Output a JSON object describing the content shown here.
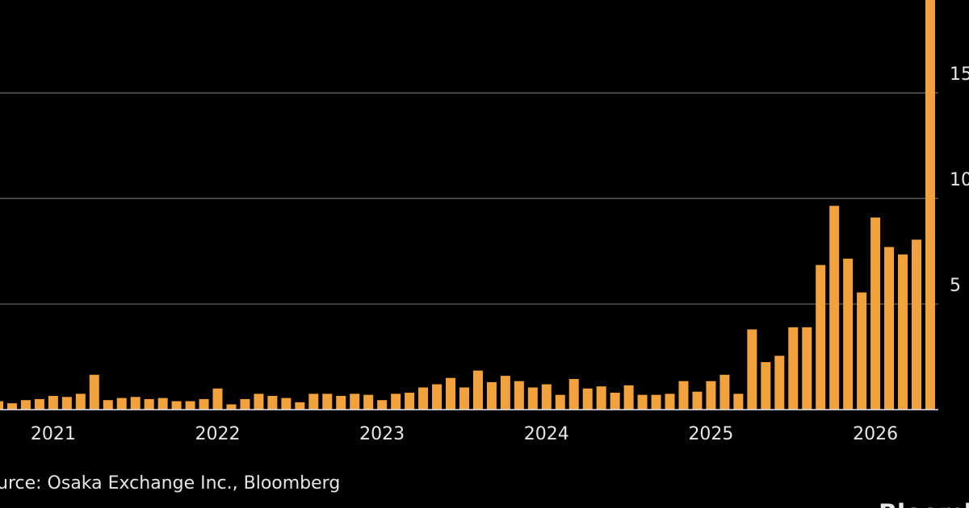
{
  "chart_data": {
    "type": "bar",
    "categories": [
      null,
      null,
      null,
      null,
      "2021",
      null,
      null,
      null,
      null,
      null,
      null,
      null,
      null,
      null,
      null,
      null,
      "2022",
      null,
      null,
      null,
      null,
      null,
      null,
      null,
      null,
      null,
      null,
      null,
      "2023",
      null,
      null,
      null,
      null,
      null,
      null,
      null,
      null,
      null,
      null,
      null,
      "2024",
      null,
      null,
      null,
      null,
      null,
      null,
      null,
      null,
      null,
      null,
      null,
      "2025",
      null,
      null,
      null,
      null,
      null,
      null,
      null,
      null,
      null,
      null,
      null,
      "2026",
      null,
      null,
      null,
      null
    ],
    "values": [
      0.4,
      0.3,
      0.45,
      0.5,
      0.65,
      0.6,
      0.75,
      1.65,
      0.45,
      0.55,
      0.6,
      0.5,
      0.55,
      0.4,
      0.4,
      0.5,
      1.0,
      0.25,
      0.5,
      0.75,
      0.65,
      0.55,
      0.35,
      0.75,
      0.75,
      0.65,
      0.75,
      0.7,
      0.45,
      0.75,
      0.8,
      1.05,
      1.2,
      1.5,
      1.05,
      1.85,
      1.3,
      1.6,
      1.35,
      1.05,
      1.2,
      0.7,
      1.45,
      1.0,
      1.1,
      0.8,
      1.15,
      0.7,
      0.7,
      0.75,
      1.35,
      0.85,
      1.35,
      1.65,
      0.75,
      3.8,
      2.25,
      2.55,
      3.9,
      3.9,
      6.85,
      9.65,
      7.15,
      5.55,
      9.1,
      7.7,
      7.35,
      8.05,
      20
    ],
    "color": "#f2a23c",
    "ylim": [
      0,
      19.4
    ],
    "yticks": [
      5,
      10,
      15
    ],
    "grid": true,
    "source": "urce: Osaka Exchange Inc., Bloomberg",
    "brand": "Bloomb"
  }
}
